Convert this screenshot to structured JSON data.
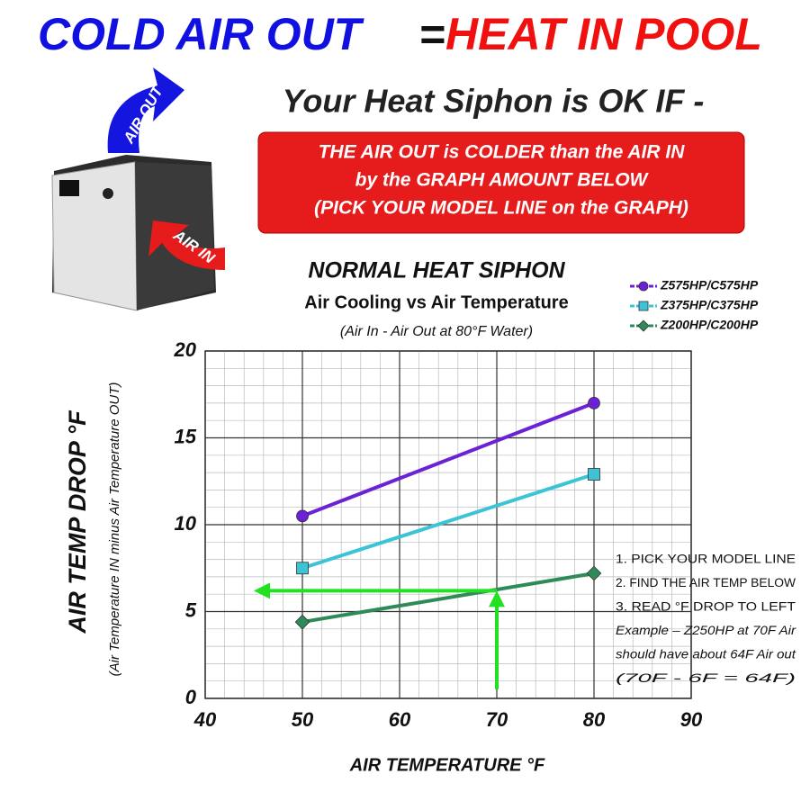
{
  "header": {
    "left": "COLD AIR OUT",
    "equals": "=",
    "right": "HEAT IN POOL"
  },
  "headline": "Your Heat Siphon is OK  IF -",
  "notice": [
    "THE AIR OUT  is COLDER than  the AIR IN",
    "by the GRAPH AMOUNT  BELOW",
    "(PICK YOUR MODEL LINE on the GRAPH)"
  ],
  "image_labels": {
    "air_out": "AIR OUT",
    "air_in": "AIR IN"
  },
  "chart_data": {
    "type": "line",
    "title": "NORMAL HEAT SIPHON",
    "subtitle": "Air Cooling vs Air Temperature",
    "note": "(Air In - Air Out at 80°F Water)",
    "x_label": "AIR TEMPERATURE  °F",
    "y_label": "AIR TEMP DROP °F",
    "y_sublabel": "(Air Temperature IN  minus Air Temperature  OUT)",
    "x": [
      50,
      80
    ],
    "series": [
      {
        "name": "Z575HP/C575HP",
        "color": "#6b22d6",
        "marker": "circle",
        "values": [
          10.5,
          17
        ]
      },
      {
        "name": "Z375HP/C375HP",
        "color": "#3cc3d6",
        "marker": "square",
        "values": [
          7.5,
          12.9
        ]
      },
      {
        "name": "Z200HP/C200HP",
        "color": "#2e8b57",
        "marker": "diamond",
        "values": [
          4.4,
          7.2
        ]
      }
    ],
    "xlim": [
      40,
      90
    ],
    "xticks": [
      40,
      50,
      60,
      70,
      80,
      90
    ],
    "ylim": [
      0,
      20
    ],
    "yticks": [
      0,
      5,
      10,
      15,
      20
    ],
    "grid": true,
    "legend": "upper right",
    "example_arrow": {
      "x": 70,
      "y": 6.2,
      "x_end": 45,
      "color": "#22e022"
    },
    "annotation": [
      "1. PICK YOUR MODEL LINE",
      "2. FIND THE AIR TEMP BELOW",
      "3. READ °F DROP TO LEFT",
      "Example –  Z250HP at 70F Air",
      "should have about 64F Air out",
      "(70F - 6F = 64F)"
    ]
  }
}
